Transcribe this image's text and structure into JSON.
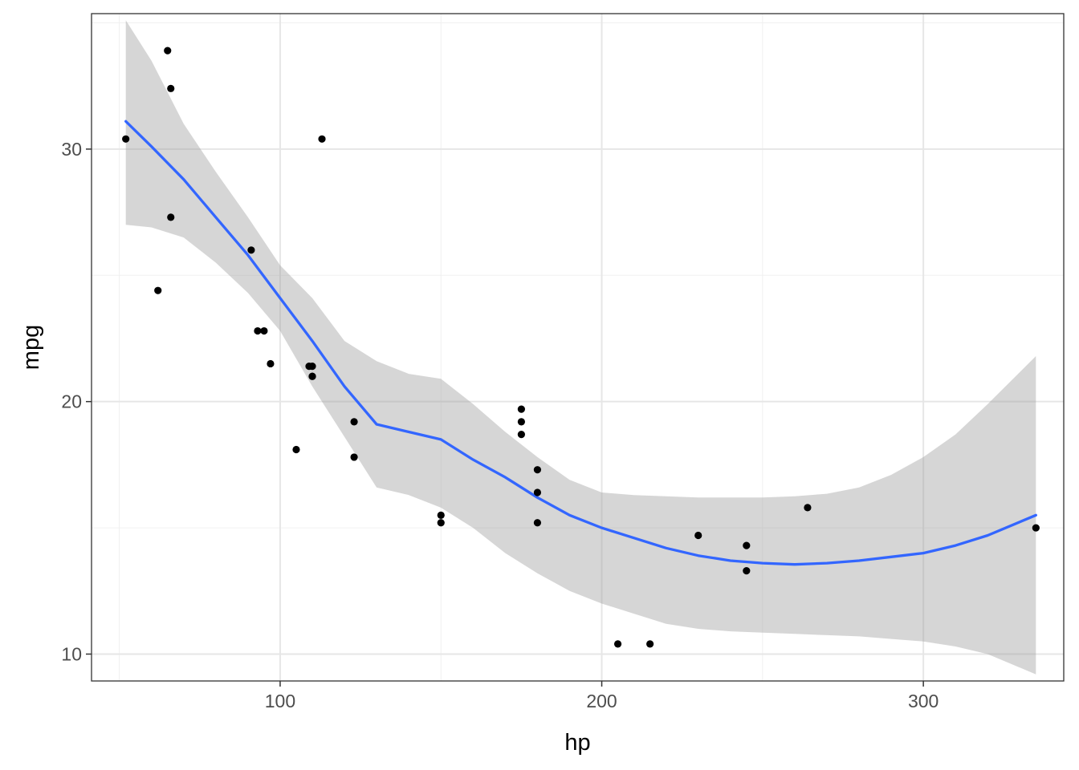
{
  "chart_data": {
    "type": "scatter",
    "xlabel": "hp",
    "ylabel": "mpg",
    "xlim": [
      41.35,
      343.65
    ],
    "ylim": [
      8.935,
      35.365
    ],
    "x_ticks": [
      100,
      200,
      300
    ],
    "y_ticks": [
      10,
      20,
      30
    ],
    "x_minor_ticks": [
      50,
      150,
      250
    ],
    "y_minor_ticks": [
      15,
      25,
      35
    ],
    "grid": true,
    "points": [
      {
        "x": 110,
        "y": 21.0
      },
      {
        "x": 110,
        "y": 21.0
      },
      {
        "x": 93,
        "y": 22.8
      },
      {
        "x": 110,
        "y": 21.4
      },
      {
        "x": 175,
        "y": 18.7
      },
      {
        "x": 105,
        "y": 18.1
      },
      {
        "x": 245,
        "y": 14.3
      },
      {
        "x": 62,
        "y": 24.4
      },
      {
        "x": 95,
        "y": 22.8
      },
      {
        "x": 123,
        "y": 19.2
      },
      {
        "x": 123,
        "y": 17.8
      },
      {
        "x": 180,
        "y": 16.4
      },
      {
        "x": 180,
        "y": 17.3
      },
      {
        "x": 180,
        "y": 15.2
      },
      {
        "x": 205,
        "y": 10.4
      },
      {
        "x": 215,
        "y": 10.4
      },
      {
        "x": 230,
        "y": 14.7
      },
      {
        "x": 66,
        "y": 32.4
      },
      {
        "x": 52,
        "y": 30.4
      },
      {
        "x": 65,
        "y": 33.9
      },
      {
        "x": 97,
        "y": 21.5
      },
      {
        "x": 150,
        "y": 15.5
      },
      {
        "x": 150,
        "y": 15.2
      },
      {
        "x": 245,
        "y": 13.3
      },
      {
        "x": 175,
        "y": 19.2
      },
      {
        "x": 66,
        "y": 27.3
      },
      {
        "x": 91,
        "y": 26.0
      },
      {
        "x": 113,
        "y": 30.4
      },
      {
        "x": 264,
        "y": 15.8
      },
      {
        "x": 175,
        "y": 19.7
      },
      {
        "x": 335,
        "y": 15.0
      },
      {
        "x": 109,
        "y": 21.4
      }
    ],
    "smooth": {
      "color": "#3366ff",
      "band_color": "#999999",
      "x": [
        52,
        60,
        70,
        80,
        90,
        100,
        110,
        120,
        130,
        140,
        150,
        160,
        170,
        180,
        190,
        200,
        210,
        220,
        230,
        240,
        250,
        260,
        270,
        280,
        290,
        300,
        310,
        320,
        335
      ],
      "y": [
        31.1,
        30.1,
        28.8,
        27.3,
        25.8,
        24.1,
        22.4,
        20.6,
        19.1,
        18.8,
        18.5,
        17.7,
        17.0,
        16.2,
        15.5,
        15.0,
        14.6,
        14.2,
        13.9,
        13.7,
        13.6,
        13.55,
        13.6,
        13.7,
        13.85,
        14.0,
        14.3,
        14.7,
        15.5
      ],
      "lower": [
        27.0,
        26.9,
        26.5,
        25.5,
        24.3,
        22.8,
        20.6,
        18.6,
        16.6,
        16.3,
        15.8,
        15.0,
        14.0,
        13.2,
        12.5,
        12.0,
        11.6,
        11.2,
        11.0,
        10.9,
        10.85,
        10.8,
        10.75,
        10.7,
        10.6,
        10.5,
        10.3,
        10.0,
        9.2
      ],
      "upper": [
        35.1,
        33.5,
        31.0,
        29.1,
        27.3,
        25.4,
        24.1,
        22.4,
        21.6,
        21.1,
        20.9,
        19.9,
        18.8,
        17.8,
        16.9,
        16.4,
        16.3,
        16.25,
        16.2,
        16.2,
        16.2,
        16.25,
        16.35,
        16.6,
        17.1,
        17.8,
        18.7,
        19.9,
        21.8
      ]
    }
  }
}
